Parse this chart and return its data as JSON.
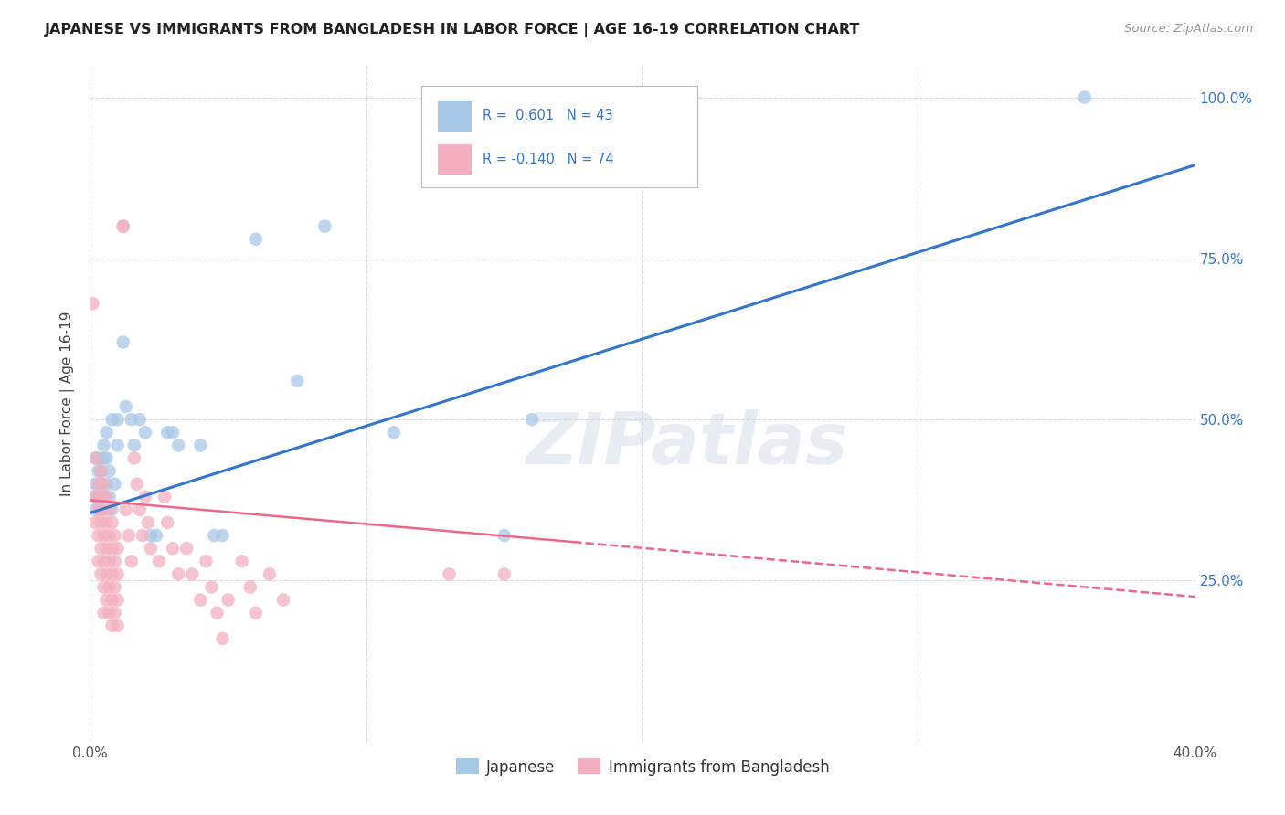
{
  "title": "JAPANESE VS IMMIGRANTS FROM BANGLADESH IN LABOR FORCE | AGE 16-19 CORRELATION CHART",
  "source": "Source: ZipAtlas.com",
  "ylabel": "In Labor Force | Age 16-19",
  "xmin": 0.0,
  "xmax": 0.4,
  "ymin": 0.0,
  "ymax": 1.05,
  "x_ticks": [
    0.0,
    0.1,
    0.2,
    0.3,
    0.4
  ],
  "x_tick_labels": [
    "0.0%",
    "",
    "",
    "",
    "40.0%"
  ],
  "y_ticks": [
    0.25,
    0.5,
    0.75,
    1.0
  ],
  "y_tick_labels": [
    "25.0%",
    "50.0%",
    "75.0%",
    "100.0%"
  ],
  "background_color": "#ffffff",
  "grid_color": "#d8d8d8",
  "watermark": "ZIPatlas",
  "blue_color": "#a8c8e8",
  "pink_color": "#f4b0c0",
  "blue_line_color": "#3377cc",
  "pink_line_color": "#ee6688",
  "blue_scatter": [
    [
      0.001,
      0.38
    ],
    [
      0.002,
      0.4
    ],
    [
      0.002,
      0.44
    ],
    [
      0.002,
      0.36
    ],
    [
      0.003,
      0.38
    ],
    [
      0.003,
      0.42
    ],
    [
      0.003,
      0.44
    ],
    [
      0.004,
      0.36
    ],
    [
      0.004,
      0.4
    ],
    [
      0.004,
      0.42
    ],
    [
      0.005,
      0.38
    ],
    [
      0.005,
      0.44
    ],
    [
      0.005,
      0.46
    ],
    [
      0.006,
      0.4
    ],
    [
      0.006,
      0.44
    ],
    [
      0.006,
      0.48
    ],
    [
      0.007,
      0.38
    ],
    [
      0.007,
      0.42
    ],
    [
      0.008,
      0.36
    ],
    [
      0.008,
      0.5
    ],
    [
      0.009,
      0.4
    ],
    [
      0.01,
      0.46
    ],
    [
      0.01,
      0.5
    ],
    [
      0.012,
      0.62
    ],
    [
      0.013,
      0.52
    ],
    [
      0.015,
      0.5
    ],
    [
      0.016,
      0.46
    ],
    [
      0.018,
      0.5
    ],
    [
      0.02,
      0.48
    ],
    [
      0.022,
      0.32
    ],
    [
      0.024,
      0.32
    ],
    [
      0.028,
      0.48
    ],
    [
      0.03,
      0.48
    ],
    [
      0.032,
      0.46
    ],
    [
      0.04,
      0.46
    ],
    [
      0.045,
      0.32
    ],
    [
      0.048,
      0.32
    ],
    [
      0.06,
      0.78
    ],
    [
      0.075,
      0.56
    ],
    [
      0.085,
      0.8
    ],
    [
      0.11,
      0.48
    ],
    [
      0.15,
      0.32
    ],
    [
      0.16,
      0.5
    ],
    [
      0.36,
      1.0
    ]
  ],
  "pink_scatter": [
    [
      0.001,
      0.68
    ],
    [
      0.002,
      0.44
    ],
    [
      0.002,
      0.38
    ],
    [
      0.002,
      0.34
    ],
    [
      0.003,
      0.4
    ],
    [
      0.003,
      0.36
    ],
    [
      0.003,
      0.32
    ],
    [
      0.003,
      0.28
    ],
    [
      0.004,
      0.42
    ],
    [
      0.004,
      0.38
    ],
    [
      0.004,
      0.34
    ],
    [
      0.004,
      0.3
    ],
    [
      0.004,
      0.26
    ],
    [
      0.005,
      0.4
    ],
    [
      0.005,
      0.36
    ],
    [
      0.005,
      0.32
    ],
    [
      0.005,
      0.28
    ],
    [
      0.005,
      0.24
    ],
    [
      0.005,
      0.2
    ],
    [
      0.006,
      0.38
    ],
    [
      0.006,
      0.34
    ],
    [
      0.006,
      0.3
    ],
    [
      0.006,
      0.26
    ],
    [
      0.006,
      0.22
    ],
    [
      0.007,
      0.36
    ],
    [
      0.007,
      0.32
    ],
    [
      0.007,
      0.28
    ],
    [
      0.007,
      0.24
    ],
    [
      0.007,
      0.2
    ],
    [
      0.008,
      0.34
    ],
    [
      0.008,
      0.3
    ],
    [
      0.008,
      0.26
    ],
    [
      0.008,
      0.22
    ],
    [
      0.008,
      0.18
    ],
    [
      0.009,
      0.32
    ],
    [
      0.009,
      0.28
    ],
    [
      0.009,
      0.24
    ],
    [
      0.009,
      0.2
    ],
    [
      0.01,
      0.3
    ],
    [
      0.01,
      0.26
    ],
    [
      0.01,
      0.22
    ],
    [
      0.01,
      0.18
    ],
    [
      0.012,
      0.8
    ],
    [
      0.012,
      0.8
    ],
    [
      0.013,
      0.36
    ],
    [
      0.014,
      0.32
    ],
    [
      0.015,
      0.28
    ],
    [
      0.016,
      0.44
    ],
    [
      0.017,
      0.4
    ],
    [
      0.018,
      0.36
    ],
    [
      0.019,
      0.32
    ],
    [
      0.02,
      0.38
    ],
    [
      0.021,
      0.34
    ],
    [
      0.022,
      0.3
    ],
    [
      0.025,
      0.28
    ],
    [
      0.027,
      0.38
    ],
    [
      0.028,
      0.34
    ],
    [
      0.03,
      0.3
    ],
    [
      0.032,
      0.26
    ],
    [
      0.035,
      0.3
    ],
    [
      0.037,
      0.26
    ],
    [
      0.04,
      0.22
    ],
    [
      0.042,
      0.28
    ],
    [
      0.044,
      0.24
    ],
    [
      0.046,
      0.2
    ],
    [
      0.048,
      0.16
    ],
    [
      0.05,
      0.22
    ],
    [
      0.055,
      0.28
    ],
    [
      0.058,
      0.24
    ],
    [
      0.06,
      0.2
    ],
    [
      0.065,
      0.26
    ],
    [
      0.07,
      0.22
    ],
    [
      0.13,
      0.26
    ],
    [
      0.15,
      0.26
    ]
  ],
  "blue_trendline": [
    [
      0.0,
      0.355
    ],
    [
      0.4,
      0.895
    ]
  ],
  "pink_trendline_solid": [
    [
      0.0,
      0.375
    ],
    [
      0.175,
      0.31
    ]
  ],
  "pink_trendline_dashed": [
    [
      0.175,
      0.31
    ],
    [
      0.4,
      0.225
    ]
  ]
}
